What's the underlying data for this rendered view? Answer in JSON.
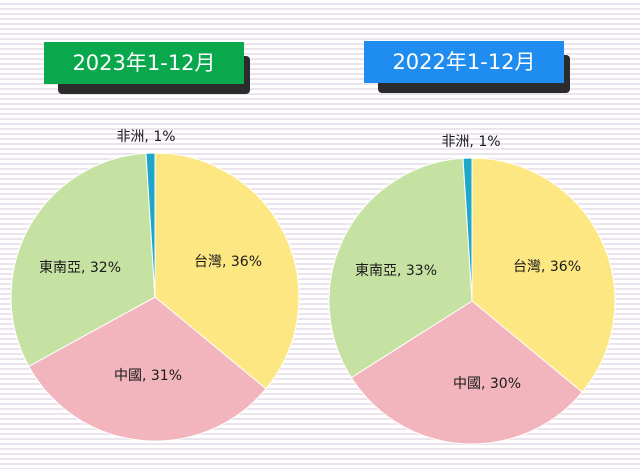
{
  "colors": {
    "taiwan": "#fde782",
    "china": "#f2b5bd",
    "southeast_asia": "#c6e2a2",
    "africa": "#20a6c9",
    "badge_2023": "#0aa84c",
    "badge_2022": "#1f8cf0"
  },
  "chart_data": [
    {
      "type": "pie",
      "title": "2023年1-12月",
      "slices": [
        {
          "label": "台灣",
          "value": 36,
          "display": "台灣, 36%",
          "color_key": "taiwan"
        },
        {
          "label": "中國",
          "value": 31,
          "display": "中國, 31%",
          "color_key": "china"
        },
        {
          "label": "東南亞",
          "value": 32,
          "display": "東南亞, 32%",
          "color_key": "southeast_asia"
        },
        {
          "label": "非洲",
          "value": 1,
          "display": "非洲, 1%",
          "color_key": "africa"
        }
      ]
    },
    {
      "type": "pie",
      "title": "2022年1-12月",
      "slices": [
        {
          "label": "台灣",
          "value": 36,
          "display": "台灣, 36%",
          "color_key": "taiwan"
        },
        {
          "label": "中國",
          "value": 30,
          "display": "中國, 30%",
          "color_key": "china"
        },
        {
          "label": "東南亞",
          "value": 33,
          "display": "東南亞, 33%",
          "color_key": "southeast_asia"
        },
        {
          "label": "非洲",
          "value": 1,
          "display": "非洲, 1%",
          "color_key": "africa"
        }
      ]
    }
  ]
}
